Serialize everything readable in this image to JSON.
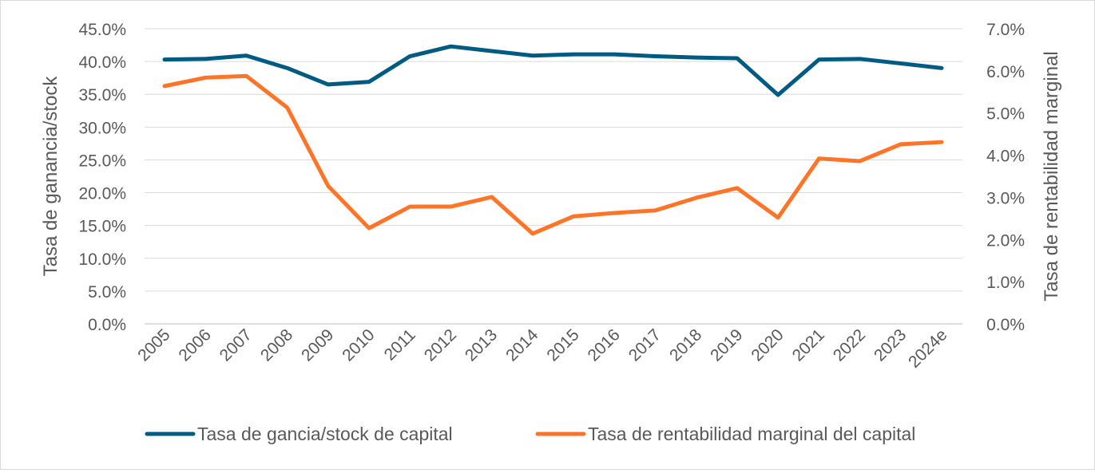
{
  "chart_data": {
    "type": "line",
    "title": "",
    "categories": [
      "2005",
      "2006",
      "2007",
      "2008",
      "2009",
      "2010",
      "2011",
      "2012",
      "2013",
      "2014",
      "2015",
      "2016",
      "2017",
      "2018",
      "2019",
      "2020",
      "2021",
      "2022",
      "2023",
      "2024e"
    ],
    "ylabel": "Tasa de ganancia/stock",
    "y2label": "Tasa de rentabilidad marginal",
    "ylim": [
      0,
      45
    ],
    "y2lim": [
      0,
      7
    ],
    "yticks": [
      "0.0%",
      "5.0%",
      "10.0%",
      "15.0%",
      "20.0%",
      "25.0%",
      "30.0%",
      "35.0%",
      "40.0%",
      "45.0%"
    ],
    "y2ticks": [
      "0.0%",
      "1.0%",
      "2.0%",
      "3.0%",
      "4.0%",
      "5.0%",
      "6.0%",
      "7.0%"
    ],
    "grid": true,
    "legend_position": "bottom",
    "series": [
      {
        "name": "Tasa de gancia/stock de capital",
        "axis": "left",
        "color": "#005b84",
        "values": [
          40.3,
          40.4,
          40.9,
          39.0,
          36.5,
          36.9,
          40.8,
          42.3,
          41.6,
          40.9,
          41.1,
          41.1,
          40.8,
          40.6,
          40.5,
          34.9,
          40.3,
          40.4,
          39.7,
          39.0
        ]
      },
      {
        "name": "Tasa de rentabilidad marginal del capital",
        "axis": "right",
        "color": "#ff7426",
        "values": [
          5.64,
          5.84,
          5.88,
          5.13,
          3.27,
          2.27,
          2.78,
          2.78,
          3.01,
          2.14,
          2.55,
          2.63,
          2.69,
          2.99,
          3.22,
          2.52,
          3.92,
          3.86,
          4.26,
          4.31
        ]
      }
    ]
  }
}
